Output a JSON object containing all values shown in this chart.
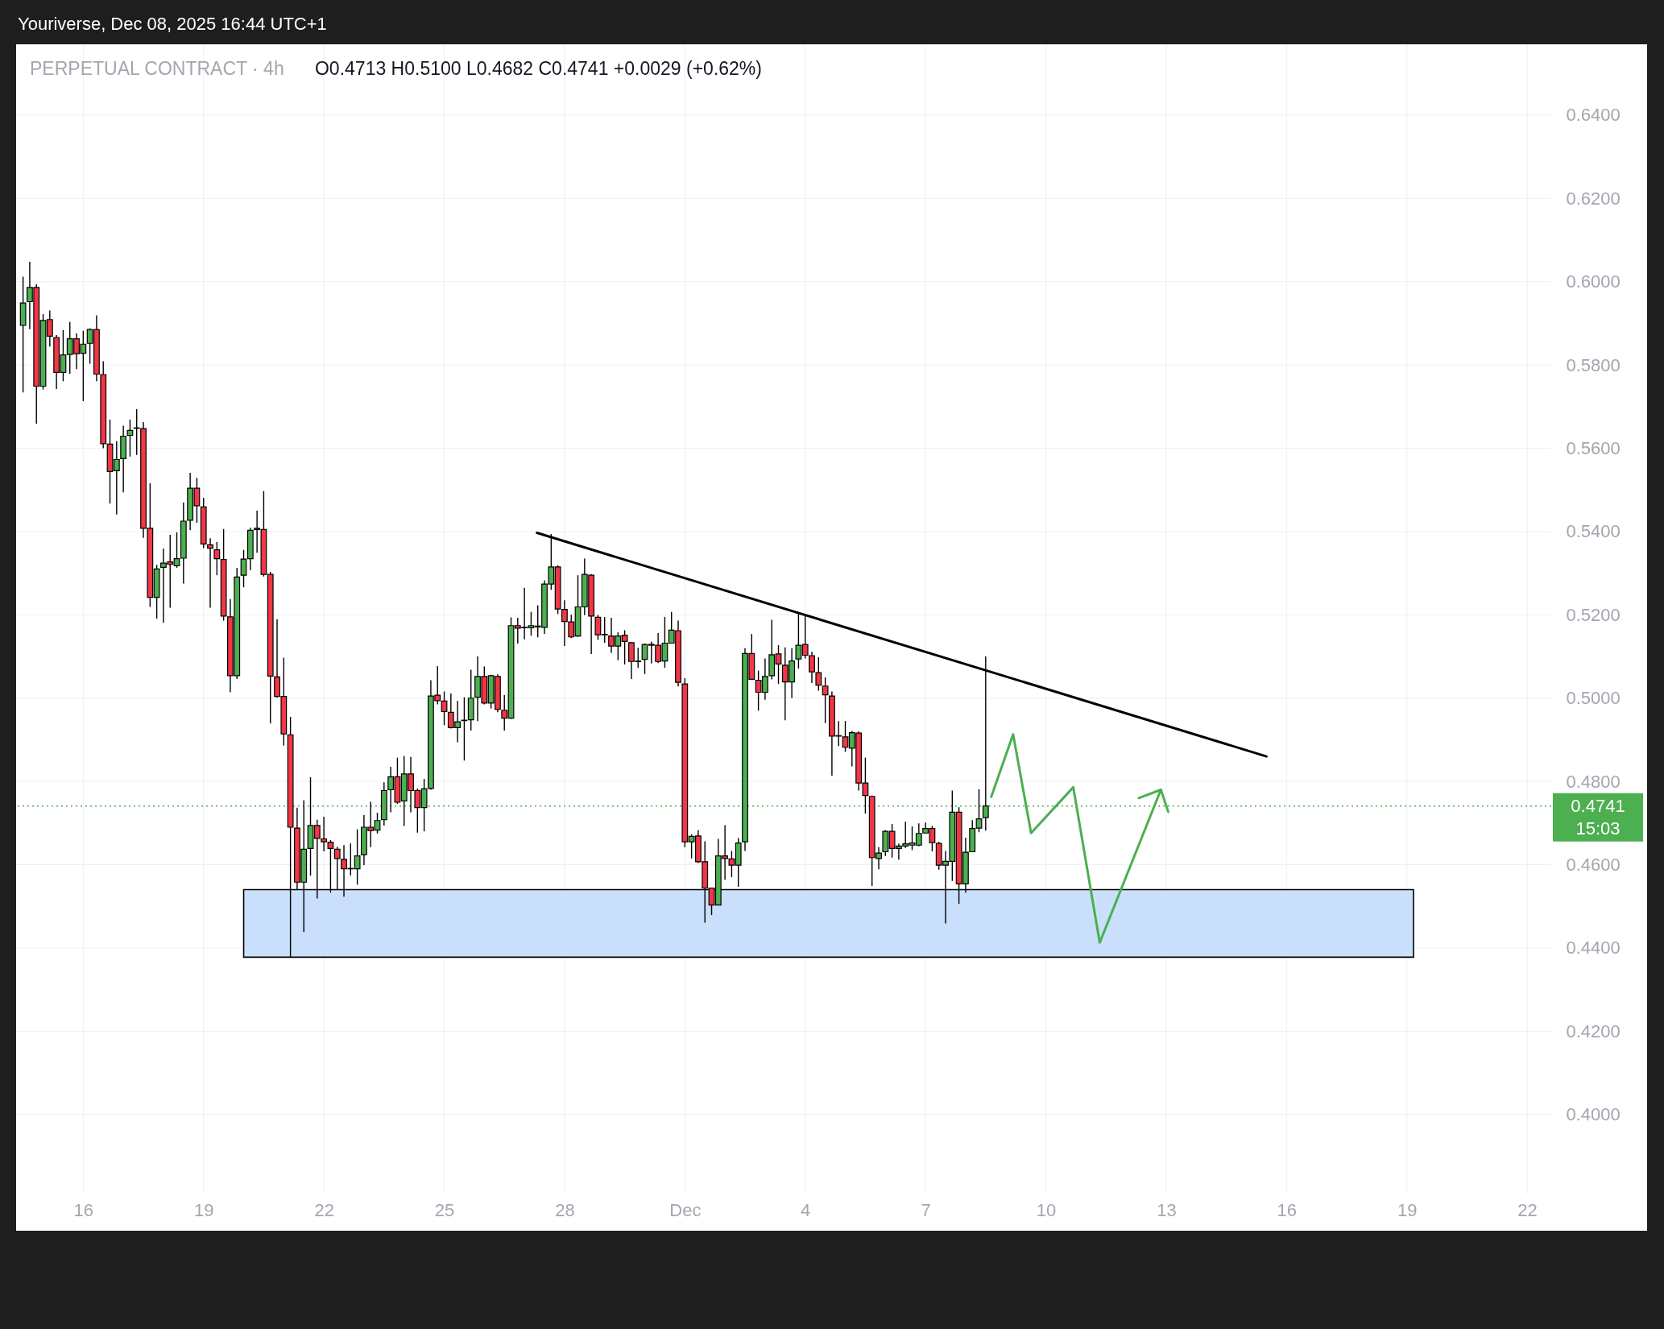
{
  "chart_data": {
    "type": "candlestick",
    "title": "PERPETUAL CONTRACT · 4h",
    "subtitle": "O0.4713 H0.5100 L0.4682 C0.4741 +0.0029 (+0.62%)",
    "annotations": [
      "Youriverse, Dec 08, 2025 16:44 UTC+1",
      "15:03"
    ],
    "x": [
      "2025-11-14T12:00",
      "2025-11-14T16:00",
      "2025-11-14T20:00",
      "2025-11-15T00:00",
      "2025-11-15T04:00",
      "2025-11-15T08:00",
      "2025-11-15T12:00",
      "2025-11-15T16:00",
      "2025-11-15T20:00",
      "2025-11-16T00:00",
      "2025-11-16T04:00",
      "2025-11-16T08:00",
      "2025-11-16T12:00",
      "2025-11-16T16:00",
      "2025-11-16T20:00",
      "2025-11-17T00:00",
      "2025-11-17T04:00",
      "2025-11-17T08:00",
      "2025-11-17T12:00",
      "2025-11-17T16:00",
      "2025-11-17T20:00",
      "2025-11-18T00:00",
      "2025-11-18T04:00",
      "2025-11-18T08:00",
      "2025-11-18T12:00",
      "2025-11-18T16:00",
      "2025-11-18T20:00",
      "2025-11-19T00:00",
      "2025-11-19T04:00",
      "2025-11-19T08:00",
      "2025-11-19T12:00",
      "2025-11-19T16:00",
      "2025-11-19T20:00",
      "2025-11-20T00:00",
      "2025-11-20T04:00",
      "2025-11-20T08:00",
      "2025-11-20T12:00",
      "2025-11-20T16:00",
      "2025-11-20T20:00",
      "2025-11-21T00:00",
      "2025-11-21T04:00",
      "2025-11-21T08:00",
      "2025-11-21T12:00",
      "2025-11-21T16:00",
      "2025-11-21T20:00",
      "2025-11-22T00:00",
      "2025-11-22T04:00",
      "2025-11-22T08:00",
      "2025-11-22T12:00",
      "2025-11-22T16:00",
      "2025-11-22T20:00",
      "2025-11-23T00:00",
      "2025-11-23T04:00",
      "2025-11-23T08:00",
      "2025-11-23T12:00",
      "2025-11-23T16:00",
      "2025-11-23T20:00",
      "2025-11-24T00:00",
      "2025-11-24T04:00",
      "2025-11-24T08:00",
      "2025-11-24T12:00",
      "2025-11-24T16:00",
      "2025-11-24T20:00",
      "2025-11-25T00:00",
      "2025-11-25T04:00",
      "2025-11-25T08:00",
      "2025-11-25T12:00",
      "2025-11-25T16:00",
      "2025-11-25T20:00",
      "2025-11-26T00:00",
      "2025-11-26T04:00",
      "2025-11-26T08:00",
      "2025-11-26T12:00",
      "2025-11-26T16:00",
      "2025-11-26T20:00",
      "2025-11-27T00:00",
      "2025-11-27T04:00",
      "2025-11-27T08:00",
      "2025-11-27T12:00",
      "2025-11-27T16:00",
      "2025-11-27T20:00",
      "2025-11-28T00:00",
      "2025-11-28T04:00",
      "2025-11-28T08:00",
      "2025-11-28T12:00",
      "2025-11-28T16:00",
      "2025-11-28T20:00",
      "2025-11-29T00:00",
      "2025-11-29T04:00",
      "2025-11-29T08:00",
      "2025-11-29T12:00",
      "2025-11-29T16:00",
      "2025-11-29T20:00",
      "2025-11-30T00:00",
      "2025-11-30T04:00",
      "2025-11-30T08:00",
      "2025-11-30T12:00",
      "2025-11-30T16:00",
      "2025-11-30T20:00",
      "2025-12-01T00:00",
      "2025-12-01T04:00",
      "2025-12-01T08:00",
      "2025-12-01T12:00",
      "2025-12-01T16:00",
      "2025-12-01T20:00",
      "2025-12-02T00:00",
      "2025-12-02T04:00",
      "2025-12-02T08:00",
      "2025-12-02T12:00",
      "2025-12-02T16:00",
      "2025-12-02T20:00",
      "2025-12-03T00:00",
      "2025-12-03T04:00",
      "2025-12-03T08:00",
      "2025-12-03T12:00",
      "2025-12-03T16:00",
      "2025-12-03T20:00",
      "2025-12-04T00:00",
      "2025-12-04T04:00",
      "2025-12-04T08:00",
      "2025-12-04T12:00",
      "2025-12-04T16:00",
      "2025-12-04T20:00",
      "2025-12-05T00:00",
      "2025-12-05T04:00",
      "2025-12-05T08:00",
      "2025-12-05T12:00",
      "2025-12-05T16:00",
      "2025-12-05T20:00",
      "2025-12-06T00:00",
      "2025-12-06T04:00",
      "2025-12-06T08:00",
      "2025-12-06T12:00",
      "2025-12-06T16:00",
      "2025-12-06T20:00",
      "2025-12-07T00:00",
      "2025-12-07T04:00",
      "2025-12-07T08:00",
      "2025-12-07T12:00",
      "2025-12-07T16:00",
      "2025-12-07T20:00",
      "2025-12-08T00:00",
      "2025-12-08T04:00",
      "2025-12-08T08:00",
      "2025-12-08T12:00"
    ],
    "ohlc": [
      [
        0.5895,
        0.6012,
        0.5734,
        0.5949
      ],
      [
        0.5952,
        0.6048,
        0.5886,
        0.5986
      ],
      [
        0.5986,
        0.5994,
        0.5659,
        0.5749
      ],
      [
        0.5749,
        0.5922,
        0.5741,
        0.5907
      ],
      [
        0.5909,
        0.5931,
        0.5844,
        0.5869
      ],
      [
        0.5866,
        0.5872,
        0.5742,
        0.5782
      ],
      [
        0.5782,
        0.5884,
        0.5761,
        0.5824
      ],
      [
        0.5825,
        0.5903,
        0.5779,
        0.5863
      ],
      [
        0.5863,
        0.5876,
        0.579,
        0.5827
      ],
      [
        0.5828,
        0.5882,
        0.5713,
        0.585
      ],
      [
        0.5852,
        0.5888,
        0.5803,
        0.5885
      ],
      [
        0.5885,
        0.5919,
        0.5761,
        0.5778
      ],
      [
        0.5777,
        0.5809,
        0.56,
        0.5611
      ],
      [
        0.561,
        0.5669,
        0.5467,
        0.5544
      ],
      [
        0.5546,
        0.5617,
        0.5441,
        0.5573
      ],
      [
        0.5575,
        0.5654,
        0.5494,
        0.5629
      ],
      [
        0.5631,
        0.5669,
        0.558,
        0.5643
      ],
      [
        0.5648,
        0.5694,
        0.5584,
        0.5649
      ],
      [
        0.5647,
        0.5663,
        0.5385,
        0.5408
      ],
      [
        0.5408,
        0.5516,
        0.5219,
        0.5242
      ],
      [
        0.5242,
        0.532,
        0.5191,
        0.531
      ],
      [
        0.5314,
        0.5359,
        0.5181,
        0.5324
      ],
      [
        0.5327,
        0.5392,
        0.5217,
        0.5321
      ],
      [
        0.5318,
        0.5398,
        0.5313,
        0.5335
      ],
      [
        0.5336,
        0.547,
        0.5275,
        0.5425
      ],
      [
        0.5427,
        0.5541,
        0.5403,
        0.5504
      ],
      [
        0.5504,
        0.5529,
        0.5421,
        0.5462
      ],
      [
        0.5459,
        0.5481,
        0.536,
        0.537
      ],
      [
        0.5368,
        0.5384,
        0.5217,
        0.536
      ],
      [
        0.5356,
        0.5375,
        0.5295,
        0.5335
      ],
      [
        0.5333,
        0.5406,
        0.5186,
        0.5197
      ],
      [
        0.5195,
        0.5238,
        0.5014,
        0.5054
      ],
      [
        0.5054,
        0.5313,
        0.5046,
        0.5291
      ],
      [
        0.5295,
        0.5356,
        0.5266,
        0.5334
      ],
      [
        0.5335,
        0.5409,
        0.5307,
        0.5403
      ],
      [
        0.5405,
        0.545,
        0.5349,
        0.5408
      ],
      [
        0.5405,
        0.5497,
        0.5292,
        0.5297
      ],
      [
        0.5297,
        0.5303,
        0.4939,
        0.5053
      ],
      [
        0.5051,
        0.5189,
        0.5001,
        0.5004
      ],
      [
        0.5004,
        0.5097,
        0.4886,
        0.4914
      ],
      [
        0.4912,
        0.4955,
        0.4378,
        0.469
      ],
      [
        0.4688,
        0.4737,
        0.4541,
        0.4558
      ],
      [
        0.4558,
        0.4755,
        0.4438,
        0.4637
      ],
      [
        0.4639,
        0.481,
        0.4574,
        0.4694
      ],
      [
        0.4694,
        0.4708,
        0.4519,
        0.4663
      ],
      [
        0.4662,
        0.4715,
        0.4632,
        0.4655
      ],
      [
        0.4654,
        0.4659,
        0.4533,
        0.4639
      ],
      [
        0.4637,
        0.4643,
        0.4541,
        0.4615
      ],
      [
        0.4613,
        0.4647,
        0.4523,
        0.459
      ],
      [
        0.459,
        0.4651,
        0.4574,
        0.4591
      ],
      [
        0.459,
        0.4685,
        0.4552,
        0.4621
      ],
      [
        0.4624,
        0.4719,
        0.4599,
        0.469
      ],
      [
        0.469,
        0.4751,
        0.4642,
        0.4682
      ],
      [
        0.4683,
        0.4725,
        0.4675,
        0.4706
      ],
      [
        0.4708,
        0.4798,
        0.4694,
        0.4778
      ],
      [
        0.478,
        0.4835,
        0.4726,
        0.4811
      ],
      [
        0.4811,
        0.4857,
        0.4746,
        0.475
      ],
      [
        0.4753,
        0.4861,
        0.4693,
        0.4818
      ],
      [
        0.4818,
        0.4859,
        0.4726,
        0.4778
      ],
      [
        0.4778,
        0.4783,
        0.4677,
        0.4737
      ],
      [
        0.4737,
        0.4806,
        0.468,
        0.4782
      ],
      [
        0.4783,
        0.5043,
        0.478,
        0.5005
      ],
      [
        0.5007,
        0.5077,
        0.4985,
        0.4994
      ],
      [
        0.4993,
        0.5016,
        0.4935,
        0.4968
      ],
      [
        0.4966,
        0.5011,
        0.4927,
        0.4929
      ],
      [
        0.4929,
        0.4993,
        0.4894,
        0.4943
      ],
      [
        0.4946,
        0.5002,
        0.485,
        0.4947
      ],
      [
        0.4948,
        0.5068,
        0.4922,
        0.5
      ],
      [
        0.5002,
        0.51,
        0.4945,
        0.5052
      ],
      [
        0.5052,
        0.5076,
        0.4985,
        0.4988
      ],
      [
        0.4988,
        0.5056,
        0.4975,
        0.5054
      ],
      [
        0.5052,
        0.5057,
        0.4966,
        0.4973
      ],
      [
        0.4971,
        0.5007,
        0.4922,
        0.4952
      ],
      [
        0.4952,
        0.5194,
        0.495,
        0.5174
      ],
      [
        0.5174,
        0.5193,
        0.5131,
        0.5168
      ],
      [
        0.5169,
        0.5265,
        0.5141,
        0.517
      ],
      [
        0.5169,
        0.5207,
        0.515,
        0.5174
      ],
      [
        0.5171,
        0.5223,
        0.5146,
        0.5173
      ],
      [
        0.517,
        0.5283,
        0.5154,
        0.5274
      ],
      [
        0.5274,
        0.5394,
        0.526,
        0.5315
      ],
      [
        0.5315,
        0.5319,
        0.5202,
        0.5214
      ],
      [
        0.5213,
        0.5235,
        0.5125,
        0.5184
      ],
      [
        0.5183,
        0.52,
        0.5144,
        0.5147
      ],
      [
        0.5149,
        0.5295,
        0.5147,
        0.5219
      ],
      [
        0.5219,
        0.5335,
        0.5199,
        0.5297
      ],
      [
        0.5295,
        0.5298,
        0.5106,
        0.5197
      ],
      [
        0.5194,
        0.52,
        0.514,
        0.5152
      ],
      [
        0.5152,
        0.5195,
        0.5133,
        0.5153
      ],
      [
        0.5149,
        0.5193,
        0.5109,
        0.5125
      ],
      [
        0.5125,
        0.5158,
        0.5091,
        0.5149
      ],
      [
        0.5151,
        0.5163,
        0.5081,
        0.5136
      ],
      [
        0.5133,
        0.5134,
        0.5046,
        0.5088
      ],
      [
        0.5088,
        0.5121,
        0.5073,
        0.5089
      ],
      [
        0.5093,
        0.5131,
        0.5058,
        0.5129
      ],
      [
        0.5129,
        0.5136,
        0.5083,
        0.5127
      ],
      [
        0.5127,
        0.5156,
        0.5084,
        0.5088
      ],
      [
        0.5089,
        0.5195,
        0.5073,
        0.5132
      ],
      [
        0.5132,
        0.5207,
        0.5131,
        0.5163
      ],
      [
        0.5162,
        0.5186,
        0.5028,
        0.5038
      ],
      [
        0.5034,
        0.5048,
        0.4642,
        0.4655
      ],
      [
        0.4655,
        0.4673,
        0.4615,
        0.4668
      ],
      [
        0.4669,
        0.4683,
        0.4604,
        0.4607
      ],
      [
        0.4607,
        0.4656,
        0.4461,
        0.4544
      ],
      [
        0.4544,
        0.4544,
        0.4479,
        0.4503
      ],
      [
        0.4503,
        0.4662,
        0.4503,
        0.4621
      ],
      [
        0.4621,
        0.4695,
        0.4564,
        0.4615
      ],
      [
        0.4614,
        0.4633,
        0.457,
        0.4599
      ],
      [
        0.4599,
        0.4664,
        0.4547,
        0.4652
      ],
      [
        0.4655,
        0.512,
        0.4633,
        0.5107
      ],
      [
        0.5107,
        0.5154,
        0.5044,
        0.5045
      ],
      [
        0.5043,
        0.5066,
        0.497,
        0.5014
      ],
      [
        0.5014,
        0.5095,
        0.4996,
        0.5052
      ],
      [
        0.5054,
        0.5188,
        0.5045,
        0.5104
      ],
      [
        0.5106,
        0.5127,
        0.5034,
        0.5082
      ],
      [
        0.5079,
        0.5122,
        0.4947,
        0.5039
      ],
      [
        0.5039,
        0.512,
        0.5,
        0.5089
      ],
      [
        0.5094,
        0.5206,
        0.5071,
        0.5127
      ],
      [
        0.5129,
        0.5199,
        0.5095,
        0.5103
      ],
      [
        0.5102,
        0.5111,
        0.5036,
        0.5063
      ],
      [
        0.5061,
        0.5098,
        0.5018,
        0.5031
      ],
      [
        0.5029,
        0.505,
        0.494,
        0.5008
      ],
      [
        0.5005,
        0.5016,
        0.4814,
        0.4909
      ],
      [
        0.4909,
        0.4945,
        0.4885,
        0.491
      ],
      [
        0.4907,
        0.4945,
        0.4871,
        0.4882
      ],
      [
        0.488,
        0.4921,
        0.4836,
        0.4917
      ],
      [
        0.4916,
        0.492,
        0.4778,
        0.4796
      ],
      [
        0.4796,
        0.4857,
        0.4723,
        0.4766
      ],
      [
        0.4764,
        0.4766,
        0.4549,
        0.4617
      ],
      [
        0.4615,
        0.4642,
        0.4589,
        0.4628
      ],
      [
        0.4631,
        0.4683,
        0.4621,
        0.468
      ],
      [
        0.468,
        0.4698,
        0.4617,
        0.4639
      ],
      [
        0.4639,
        0.4651,
        0.4612,
        0.4645
      ],
      [
        0.4645,
        0.4703,
        0.464,
        0.465
      ],
      [
        0.4647,
        0.4692,
        0.4635,
        0.4652
      ],
      [
        0.4647,
        0.4699,
        0.4644,
        0.4675
      ],
      [
        0.4676,
        0.4701,
        0.4675,
        0.4687
      ],
      [
        0.4687,
        0.4693,
        0.4632,
        0.4653
      ],
      [
        0.4651,
        0.4655,
        0.4588,
        0.4599
      ],
      [
        0.4599,
        0.4633,
        0.4459,
        0.4608
      ],
      [
        0.4608,
        0.4778,
        0.4561,
        0.4726
      ],
      [
        0.4726,
        0.4738,
        0.4506,
        0.4554
      ],
      [
        0.4554,
        0.4665,
        0.4533,
        0.463
      ],
      [
        0.4631,
        0.4707,
        0.4631,
        0.4687
      ],
      [
        0.4688,
        0.4781,
        0.4678,
        0.471
      ],
      [
        0.4713,
        0.51,
        0.4682,
        0.4741
      ]
    ],
    "colors": [
      "#4caf50",
      "#4caf50",
      "#f23645",
      "#4caf50",
      "#f23645",
      "#f23645",
      "#4caf50",
      "#4caf50",
      "#f23645",
      "#4caf50",
      "#4caf50",
      "#f23645",
      "#f23645",
      "#f23645",
      "#4caf50",
      "#4caf50",
      "#4caf50",
      "#4caf50",
      "#f23645",
      "#f23645",
      "#4caf50",
      "#4caf50",
      "#f23645",
      "#4caf50",
      "#4caf50",
      "#4caf50",
      "#f23645",
      "#f23645",
      "#f23645",
      "#f23645",
      "#f23645",
      "#f23645",
      "#4caf50",
      "#4caf50",
      "#4caf50",
      "#4caf50",
      "#f23645",
      "#f23645",
      "#f23645",
      "#f23645",
      "#f23645",
      "#f23645",
      "#4caf50",
      "#4caf50",
      "#f23645",
      "#f23645",
      "#f23645",
      "#f23645",
      "#f23645",
      "#4caf50",
      "#4caf50",
      "#4caf50",
      "#f23645",
      "#4caf50",
      "#4caf50",
      "#4caf50",
      "#f23645",
      "#4caf50",
      "#f23645",
      "#f23645",
      "#4caf50",
      "#4caf50",
      "#f23645",
      "#f23645",
      "#f23645",
      "#4caf50",
      "#4caf50",
      "#4caf50",
      "#4caf50",
      "#f23645",
      "#4caf50",
      "#f23645",
      "#f23645",
      "#4caf50",
      "#f23645",
      "#4caf50",
      "#4caf50",
      "#4caf50",
      "#4caf50",
      "#4caf50",
      "#f23645",
      "#f23645",
      "#f23645",
      "#4caf50",
      "#4caf50",
      "#f23645",
      "#f23645",
      "#4caf50",
      "#f23645",
      "#4caf50",
      "#f23645",
      "#f23645",
      "#4caf50",
      "#4caf50",
      "#f23645",
      "#f23645",
      "#4caf50",
      "#4caf50",
      "#f23645",
      "#f23645",
      "#4caf50",
      "#f23645",
      "#f23645",
      "#f23645",
      "#4caf50",
      "#f23645",
      "#f23645",
      "#4caf50",
      "#4caf50",
      "#f23645",
      "#f23645",
      "#4caf50",
      "#4caf50",
      "#f23645",
      "#f23645",
      "#4caf50",
      "#4caf50",
      "#f23645",
      "#f23645",
      "#f23645",
      "#f23645",
      "#f23645",
      "#4caf50",
      "#f23645",
      "#4caf50",
      "#f23645",
      "#f23645",
      "#f23645",
      "#4caf50",
      "#4caf50",
      "#f23645",
      "#4caf50",
      "#4caf50",
      "#4caf50",
      "#4caf50",
      "#4caf50",
      "#f23645",
      "#f23645",
      "#4caf50",
      "#4caf50",
      "#f23645",
      "#4caf50",
      "#4caf50",
      "#4caf50",
      "#4caf50"
    ],
    "series": [
      {
        "type": "line",
        "x": [
          "2025-11-20T00:00",
          "2025-12-19T04:00"
        ],
        "values": [
          null,
          null
        ],
        "lower": [
          0.4378,
          0.4378
        ],
        "upper": [
          0.454,
          0.454
        ],
        "color": "#cadffb"
      },
      {
        "type": "line",
        "x": [
          "2025-11-27T07:30",
          "2025-12-15T12:00"
        ],
        "values": [
          0.5397,
          0.486
        ],
        "color": "#000000"
      },
      {
        "type": "line",
        "x": [
          "2025-12-08T15:20",
          "2025-12-09T04:25",
          "2025-12-09T15:10",
          "2025-12-10T16:25",
          "2025-12-11T08:15",
          "2025-12-12T20:50"
        ],
        "values": [
          0.4763,
          0.4913,
          0.4676,
          0.4786,
          0.4413,
          0.478
        ],
        "color": "#4caf50"
      },
      {
        "type": "line",
        "x": [
          "2025-12-12T07:35",
          "2025-12-12T20:50",
          "2025-12-13T01:15"
        ],
        "values": [
          0.476,
          0.478,
          0.4727
        ],
        "color": "#4caf50"
      }
    ],
    "ref_lines": [
      {
        "axis": "y",
        "value": 0.4741,
        "label": "0.4741",
        "color": "#4caf50",
        "line_style": "dotted"
      }
    ],
    "xlim": [
      "2025-11-14T10:15",
      "2025-12-22T12:00"
    ],
    "xticks": [
      {
        "value": "2025-11-16",
        "label": "16"
      },
      {
        "value": "2025-11-19",
        "label": "19"
      },
      {
        "value": "2025-11-22",
        "label": "22"
      },
      {
        "value": "2025-11-25",
        "label": "25"
      },
      {
        "value": "2025-11-28",
        "label": "28"
      },
      {
        "value": "2025-12-01",
        "label": "Dec"
      },
      {
        "value": "2025-12-04",
        "label": "4"
      },
      {
        "value": "2025-12-07",
        "label": "7"
      },
      {
        "value": "2025-12-10",
        "label": "10"
      },
      {
        "value": "2025-12-13",
        "label": "13"
      },
      {
        "value": "2025-12-16",
        "label": "16"
      },
      {
        "value": "2025-12-19",
        "label": "19"
      },
      {
        "value": "2025-12-22",
        "label": "22"
      }
    ],
    "ylim": [
      0.381,
      0.657
    ],
    "yticks": [
      {
        "value": 0.4,
        "label": "0.4000"
      },
      {
        "value": 0.42,
        "label": "0.4200"
      },
      {
        "value": 0.44,
        "label": "0.4400"
      },
      {
        "value": 0.46,
        "label": "0.4600"
      },
      {
        "value": 0.48,
        "label": "0.4800"
      },
      {
        "value": 0.5,
        "label": "0.5000"
      },
      {
        "value": 0.52,
        "label": "0.5200"
      },
      {
        "value": 0.54,
        "label": "0.5400"
      },
      {
        "value": 0.56,
        "label": "0.5600"
      },
      {
        "value": 0.58,
        "label": "0.5800"
      },
      {
        "value": 0.6,
        "label": "0.6000"
      },
      {
        "value": 0.62,
        "label": "0.6200"
      },
      {
        "value": 0.64,
        "label": "0.6400"
      }
    ],
    "grid": true
  }
}
